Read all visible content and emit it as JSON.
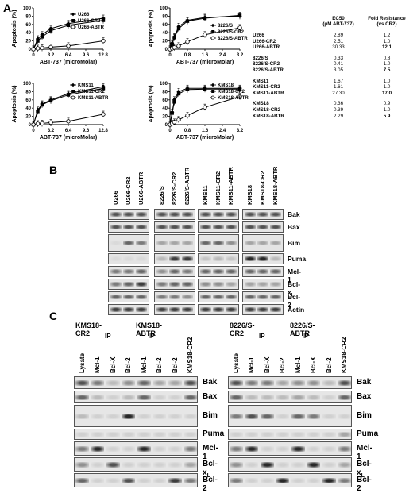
{
  "panels": {
    "a": "A",
    "b": "B",
    "c": "C"
  },
  "plots": [
    {
      "id": "u266",
      "ylabel": "Apoptosis (%)",
      "xlabel": "ABT-737 (microMolar)",
      "xticks": [
        "0",
        "3.2",
        "6.4",
        "9.6",
        "12.8"
      ],
      "yticks": [
        "0",
        "20",
        "40",
        "60",
        "80",
        "100"
      ],
      "legend": [
        "U266",
        "U266-CR2",
        "U266-ABTR"
      ]
    },
    {
      "id": "8226",
      "ylabel": "Apoptosis (%)",
      "xlabel": "ABT-737 (microMolar)",
      "xticks": [
        "0",
        "0.8",
        "1.6",
        "2.4",
        "3.2"
      ],
      "yticks": [
        "0",
        "20",
        "40",
        "60",
        "80",
        "100"
      ],
      "legend": [
        "8226/S",
        "8226/S-CR2",
        "8226/S-ABTR"
      ]
    },
    {
      "id": "kms11",
      "ylabel": "Apoptosis (%)",
      "xlabel": "ABT-737 (microMolar)",
      "xticks": [
        "0",
        "3.2",
        "6.4",
        "9.6",
        "12.8"
      ],
      "yticks": [
        "0",
        "20",
        "40",
        "60",
        "80",
        "100"
      ],
      "legend": [
        "KMS11",
        "KMS11-CR2",
        "KMS11-ABTR"
      ]
    },
    {
      "id": "kms18",
      "ylabel": "Apoptosis (%)",
      "xlabel": "ABT-737 (microMolar)",
      "xticks": [
        "0",
        "0.8",
        "1.6",
        "2.4",
        "3.2"
      ],
      "yticks": [
        "0",
        "20",
        "40",
        "60",
        "80",
        "100"
      ],
      "legend": [
        "KMS18",
        "KMS18-CR2",
        "KMS18-ABTR"
      ]
    }
  ],
  "chart_data": [
    {
      "type": "line",
      "x": [
        0,
        0.8,
        1.6,
        3.2,
        6.4,
        12.8
      ],
      "xlim": [
        0,
        12.8
      ],
      "ylim": [
        0,
        100
      ],
      "series": [
        {
          "name": "U266",
          "values": [
            0,
            25,
            35,
            50,
            62,
            75
          ]
        },
        {
          "name": "U266-CR2",
          "values": [
            0,
            20,
            30,
            45,
            58,
            70
          ]
        },
        {
          "name": "U266-ABTR",
          "values": [
            0,
            2,
            3,
            5,
            8,
            20
          ]
        }
      ]
    },
    {
      "type": "line",
      "x": [
        0,
        0.1,
        0.2,
        0.4,
        0.8,
        1.6,
        3.2
      ],
      "xlim": [
        0,
        3.2
      ],
      "ylim": [
        0,
        100
      ],
      "series": [
        {
          "name": "8226/S",
          "values": [
            0,
            15,
            30,
            55,
            70,
            77,
            80
          ]
        },
        {
          "name": "8226/S-CR2",
          "values": [
            0,
            12,
            28,
            50,
            68,
            75,
            82
          ]
        },
        {
          "name": "8226/S-ABTR",
          "values": [
            0,
            2,
            4,
            8,
            18,
            35,
            52
          ]
        }
      ]
    },
    {
      "type": "line",
      "x": [
        0,
        0.8,
        1.6,
        3.2,
        6.4,
        12.8
      ],
      "xlim": [
        0,
        12.8
      ],
      "ylim": [
        0,
        100
      ],
      "series": [
        {
          "name": "KMS11",
          "values": [
            0,
            35,
            50,
            60,
            75,
            92
          ]
        },
        {
          "name": "KMS11-CR2",
          "values": [
            0,
            32,
            48,
            58,
            72,
            88
          ]
        },
        {
          "name": "KMS11-ABTR",
          "values": [
            0,
            2,
            3,
            5,
            8,
            25
          ]
        }
      ]
    },
    {
      "type": "line",
      "x": [
        0,
        0.1,
        0.2,
        0.4,
        0.8,
        1.6,
        3.2
      ],
      "xlim": [
        0,
        3.2
      ],
      "ylim": [
        0,
        100
      ],
      "series": [
        {
          "name": "KMS18",
          "values": [
            0,
            30,
            60,
            80,
            88,
            88,
            88
          ]
        },
        {
          "name": "KMS18-CR2",
          "values": [
            0,
            28,
            55,
            75,
            85,
            86,
            86
          ]
        },
        {
          "name": "KMS18-ABTR",
          "values": [
            0,
            3,
            6,
            12,
            22,
            42,
            68
          ]
        }
      ]
    }
  ],
  "table": {
    "header": [
      "EC50",
      "(μM ABT-737)",
      "Fold Resistance",
      "(vs CR2)"
    ],
    "groups": [
      [
        [
          "U266",
          "2.89",
          "1.2"
        ],
        [
          "U266-CR2",
          "2.51",
          "1.0"
        ],
        [
          "U266-ABTR",
          "30.33",
          "12.1"
        ]
      ],
      [
        [
          "8226/S",
          "0.33",
          "0.8"
        ],
        [
          "8226/S-CR2",
          "0.41",
          "1.0"
        ],
        [
          "8226/S-ABTR",
          "3.05",
          "7.5"
        ]
      ],
      [
        [
          "KMS11",
          "1.67",
          "1.0"
        ],
        [
          "KMS11-CR2",
          "1.61",
          "1.0"
        ],
        [
          "KMS11-ABTR",
          "27.30",
          "17.0"
        ]
      ],
      [
        [
          "KMS18",
          "0.36",
          "0.9"
        ],
        [
          "KMS18-CR2",
          "0.39",
          "1.0"
        ],
        [
          "KMS18-ABTR",
          "2.29",
          "5.9"
        ]
      ]
    ]
  },
  "blotB": {
    "groups": [
      [
        "U266",
        "U266-CR2",
        "U266-ABTR"
      ],
      [
        "8226/S",
        "8226/S-CR2",
        "8226/S-ABTR"
      ],
      [
        "KMS11",
        "KMS11-CR2",
        "KMS11-ABTR"
      ],
      [
        "KMS18",
        "KMS18-CR2",
        "KMS18-ABTR"
      ]
    ],
    "rows": [
      "Bak",
      "Bax",
      "Bim",
      "Puma",
      "Mcl-1",
      "Bcl-xL",
      "Bcl-2",
      "Actin"
    ]
  },
  "blotC": {
    "left": {
      "titles": [
        "KMS18-CR2",
        "KMS18-ABTR"
      ],
      "ip": "IP",
      "lanes": [
        "Lysate",
        "Mcl-1",
        "Bcl-X",
        "Bcl-2",
        "Mcl-1",
        "Bcl-2",
        "Bcl-2",
        "KMS18-CR2"
      ]
    },
    "right": {
      "titles": [
        "8226/S-CR2",
        "8226/S-ABTR"
      ],
      "ip": "IP",
      "lanes": [
        "Lysate",
        "Mcl-1",
        "Bcl-X",
        "Bcl-2",
        "Mcl-1",
        "Bcl-X",
        "Bcl-2",
        "KMS18-CR2"
      ]
    },
    "rows": [
      "Bak",
      "Bax",
      "Bim",
      "Puma",
      "Mcl-1",
      "Bcl-xL",
      "Bcl-2"
    ]
  }
}
